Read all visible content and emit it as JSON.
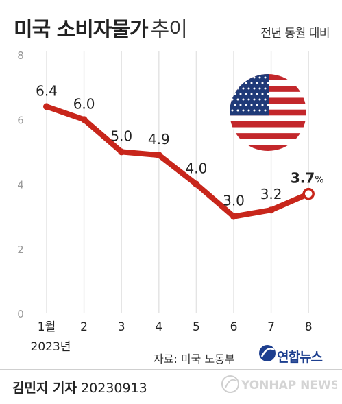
{
  "header": {
    "title": "미국 소비자물가",
    "title_sub": "추이",
    "unit_note": "전년 동월 대비"
  },
  "chart_data": {
    "type": "line",
    "title": "미국 소비자물가 추이",
    "subtitle": "전년 동월 대비",
    "categories": [
      "1월",
      "2",
      "3",
      "4",
      "5",
      "6",
      "7",
      "8"
    ],
    "x_sublabel": "2023년",
    "values": [
      6.4,
      6.0,
      5.0,
      4.9,
      4.0,
      3.0,
      3.2,
      3.7
    ],
    "value_labels": [
      "6.4",
      "6.0",
      "5.0",
      "4.9",
      "4.0",
      "3.0",
      "3.2",
      "3.7"
    ],
    "last_unit": "%",
    "ylim": [
      0,
      8
    ],
    "yticks": [
      0,
      2,
      4,
      6,
      8
    ],
    "grid": "vertical",
    "line_color": "#c8261b"
  },
  "source": "자료: 미국 노동부",
  "logo": {
    "text": "연합뉴스"
  },
  "byline": {
    "name": "김민지 기자",
    "date": "20230913"
  },
  "watermark": {
    "text": "YONHAP NEWS"
  },
  "flag_icon": "us-flag-icon"
}
